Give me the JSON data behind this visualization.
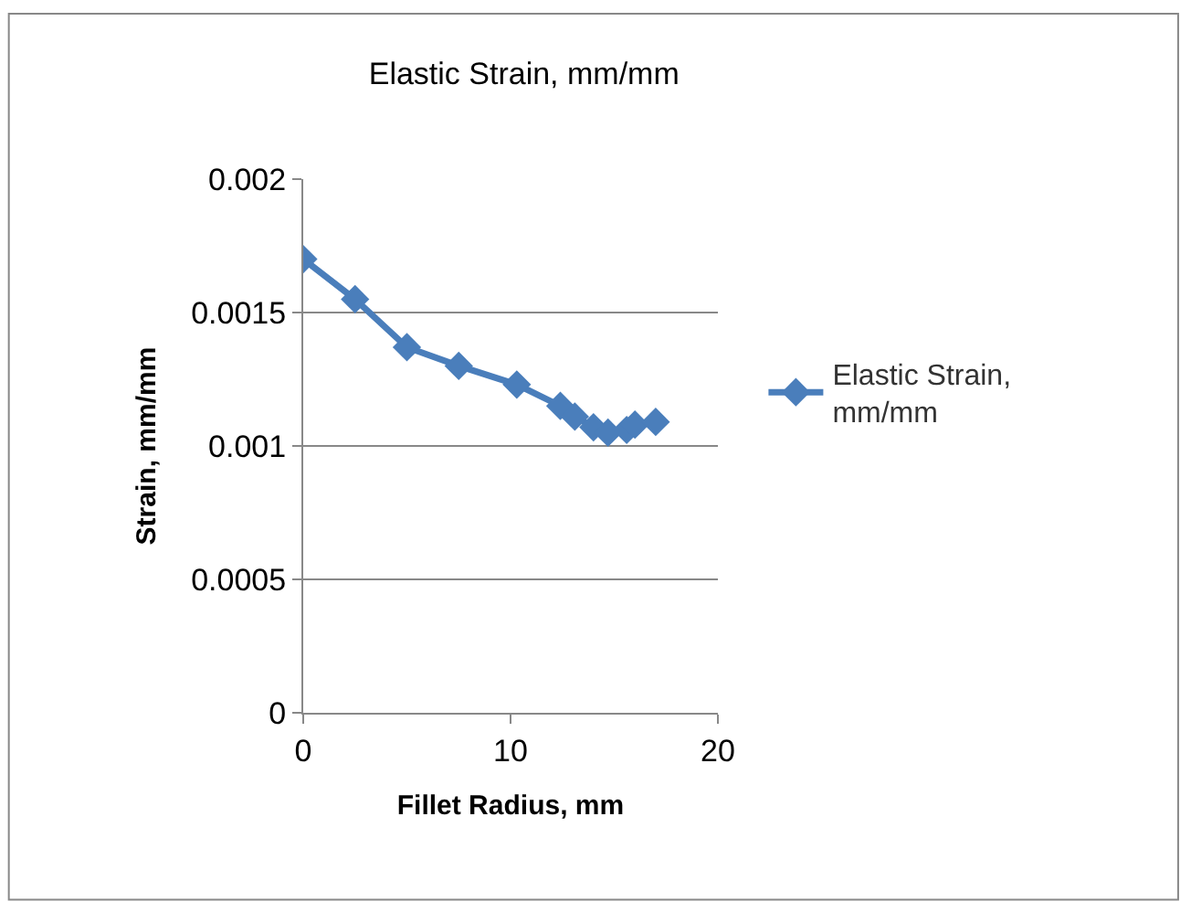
{
  "chart_data": {
    "type": "line",
    "title": "Elastic Strain, mm/mm",
    "xlabel": "Fillet Radius, mm",
    "ylabel": "Strain, mm/mm",
    "x": [
      0,
      2.5,
      5,
      7.5,
      10.3,
      12.4,
      13.1,
      14,
      14.7,
      15.6,
      16,
      17
    ],
    "series": [
      {
        "name": "Elastic Strain, mm/mm",
        "color": "#4a7ebb",
        "values": [
          0.0017,
          0.00155,
          0.00137,
          0.0013,
          0.00123,
          0.00115,
          0.00111,
          0.00107,
          0.00105,
          0.00106,
          0.00108,
          0.00109
        ]
      }
    ],
    "xlim": [
      0,
      20
    ],
    "xticks": [
      0,
      10,
      20
    ],
    "ylim": [
      0,
      0.002
    ],
    "yticks": [
      {
        "value": 0,
        "label": "0"
      },
      {
        "value": 0.0005,
        "label": "0.0005"
      },
      {
        "value": 0.001,
        "label": "0.001"
      },
      {
        "value": 0.0015,
        "label": "0.0015"
      },
      {
        "value": 0.002,
        "label": "0.002"
      }
    ],
    "grid": "y",
    "legend": "right",
    "marker": "diamond",
    "line_style": "solid"
  }
}
